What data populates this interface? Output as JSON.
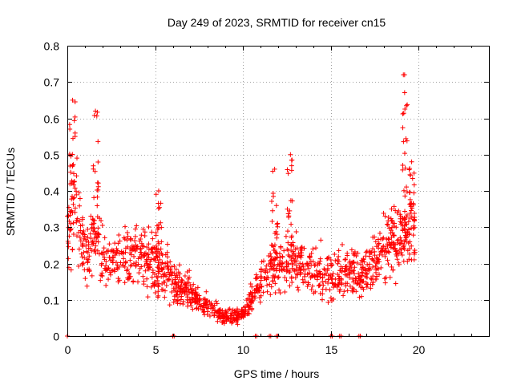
{
  "chart_data": {
    "type": "scatter",
    "title": "Day 249 of 2023, SRMTID for receiver cn15",
    "xlabel": "GPS time / hours",
    "ylabel": "SRMTID / TECUs",
    "xlim": [
      0,
      24
    ],
    "ylim": [
      0,
      0.8
    ],
    "x_ticks": [
      0,
      5,
      10,
      15,
      20
    ],
    "y_ticks": [
      0,
      0.1,
      0.2,
      0.3,
      0.4,
      0.5,
      0.6,
      0.7,
      0.8
    ],
    "x_tick_labels": [
      "0",
      "5",
      "10",
      "15",
      "20"
    ],
    "y_tick_labels": [
      "0",
      "0.1",
      "0.2",
      "0.3",
      "0.4",
      "0.5",
      "0.6",
      "0.7",
      "0.8"
    ],
    "grid": true,
    "marker": "plus",
    "color": "#ff0000",
    "x_data_range": [
      0,
      19.8
    ],
    "series": [
      {
        "name": "SRMTID",
        "envelope": [
          {
            "x": 0.0,
            "y": 0.3
          },
          {
            "x": 0.5,
            "y": 0.35
          },
          {
            "x": 1.0,
            "y": 0.22
          },
          {
            "x": 1.5,
            "y": 0.28
          },
          {
            "x": 2.0,
            "y": 0.22
          },
          {
            "x": 3.0,
            "y": 0.2
          },
          {
            "x": 4.0,
            "y": 0.22
          },
          {
            "x": 5.0,
            "y": 0.2
          },
          {
            "x": 6.0,
            "y": 0.15
          },
          {
            "x": 7.0,
            "y": 0.12
          },
          {
            "x": 8.0,
            "y": 0.08
          },
          {
            "x": 9.0,
            "y": 0.05
          },
          {
            "x": 10.0,
            "y": 0.06
          },
          {
            "x": 11.0,
            "y": 0.15
          },
          {
            "x": 12.0,
            "y": 0.2
          },
          {
            "x": 13.0,
            "y": 0.2
          },
          {
            "x": 14.0,
            "y": 0.18
          },
          {
            "x": 15.0,
            "y": 0.17
          },
          {
            "x": 16.0,
            "y": 0.18
          },
          {
            "x": 17.0,
            "y": 0.18
          },
          {
            "x": 18.0,
            "y": 0.25
          },
          {
            "x": 19.0,
            "y": 0.28
          },
          {
            "x": 19.8,
            "y": 0.28
          }
        ],
        "peaks": [
          {
            "x": 0.3,
            "y": 0.65
          },
          {
            "x": 1.6,
            "y": 0.62
          },
          {
            "x": 5.2,
            "y": 0.4
          },
          {
            "x": 11.8,
            "y": 0.46
          },
          {
            "x": 12.7,
            "y": 0.5
          },
          {
            "x": 19.2,
            "y": 0.72
          },
          {
            "x": 19.6,
            "y": 0.48
          }
        ],
        "zero_values_at_x": [
          6.0,
          10.7,
          11.5,
          11.9,
          15.0,
          15.5,
          16.6
        ]
      }
    ]
  }
}
